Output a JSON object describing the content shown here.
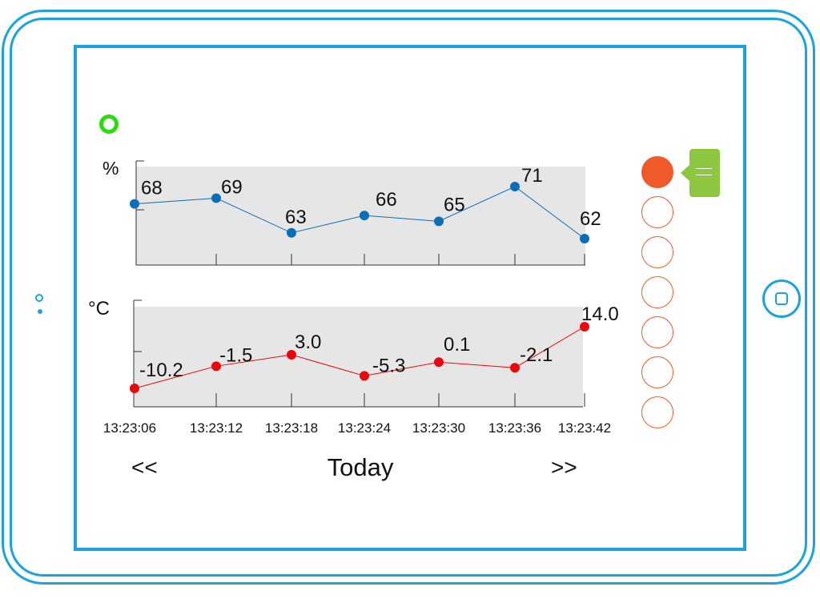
{
  "device": {
    "frame_color": "#1aa3dc",
    "home_icon": "home-button-icon",
    "camera_icon": "camera-icon"
  },
  "status": {
    "icon": "connection-status-icon",
    "color": "#2bdc0a"
  },
  "nav": {
    "prev_label": "<<",
    "next_label": ">>",
    "date_label": "Today"
  },
  "channels": {
    "count": 7,
    "active_index": 0,
    "active_color": "#f05a28",
    "outline_color": "#f05a28"
  },
  "menu": {
    "icon": "menu-icon",
    "color": "#8dc63f"
  },
  "chart_data": [
    {
      "type": "line",
      "ylabel": "%",
      "x": [
        "13:23:06",
        "13:23:12",
        "13:23:18",
        "13:23:24",
        "13:23:30",
        "13:23:36",
        "13:23:42"
      ],
      "series": [
        {
          "values": [
            68,
            69,
            63,
            66,
            65,
            71,
            62
          ],
          "labels": [
            "68",
            "69",
            "63",
            "66",
            "65",
            "71",
            "62"
          ],
          "color": "#0b6fb8"
        }
      ],
      "ylim": [
        58,
        74
      ],
      "grid": false,
      "background": "#e6e6e6"
    },
    {
      "type": "line",
      "ylabel": "°C",
      "x": [
        "13:23:06",
        "13:23:12",
        "13:23:18",
        "13:23:24",
        "13:23:30",
        "13:23:36",
        "13:23:42"
      ],
      "series": [
        {
          "values": [
            -10.2,
            -1.5,
            3.0,
            -5.3,
            0.1,
            -2.1,
            14.0
          ],
          "labels": [
            "-10.2",
            "-1.5",
            "3.0",
            "-5.3",
            "0.1",
            "-2.1",
            "14.0"
          ],
          "color": "#e8080d"
        }
      ],
      "ylim": [
        -12,
        20
      ],
      "grid": false,
      "background": "#e6e6e6"
    }
  ]
}
